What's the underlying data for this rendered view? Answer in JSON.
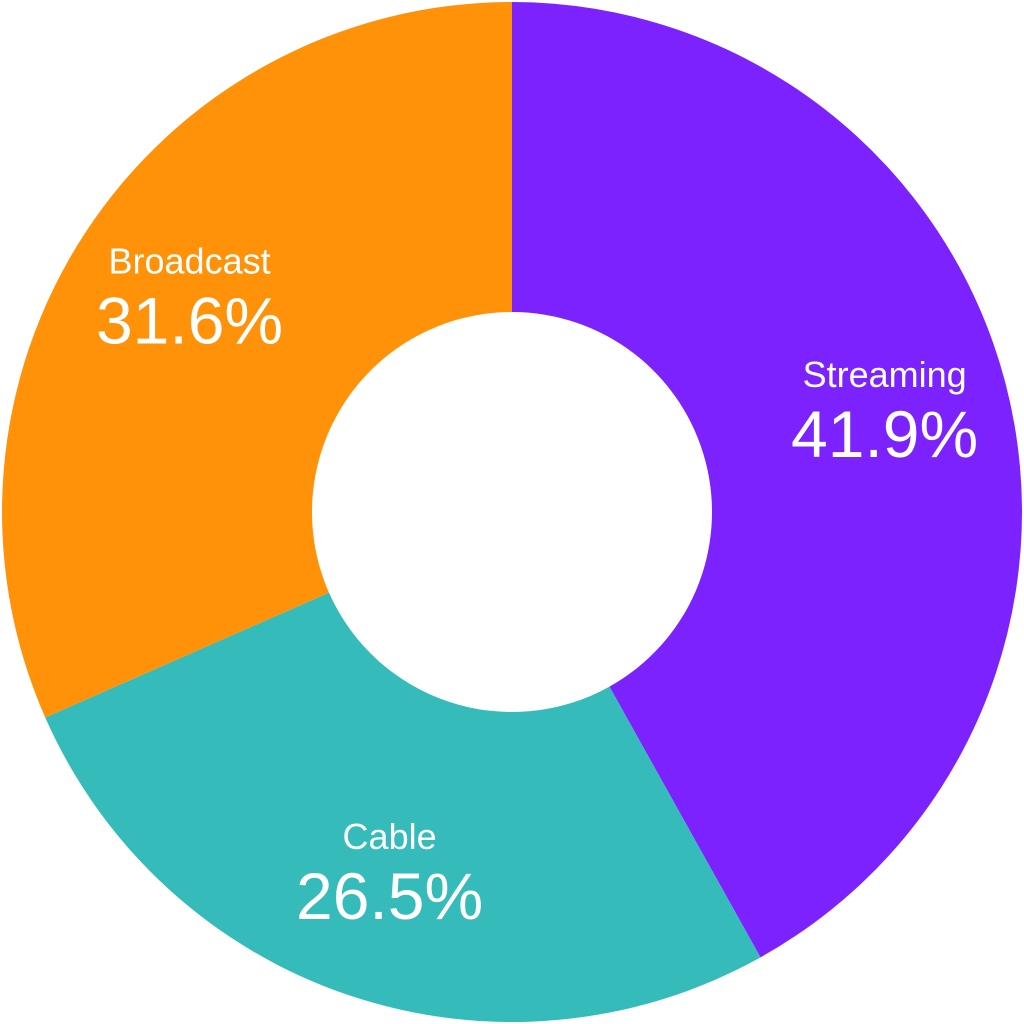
{
  "chart_data": {
    "type": "pie",
    "variant": "donut",
    "title": "",
    "legend": "none",
    "slices": [
      {
        "label": "Streaming",
        "value": 41.9,
        "display": "41.9%",
        "color": "#7b22ff"
      },
      {
        "label": "Cable",
        "value": 26.5,
        "display": "26.5%",
        "color": "#35bbba"
      },
      {
        "label": "Broadcast",
        "value": 31.6,
        "display": "31.6%",
        "color": "#ff9208"
      }
    ],
    "start": "12 o'clock",
    "direction": "clockwise",
    "center_color": "#ffffff"
  }
}
